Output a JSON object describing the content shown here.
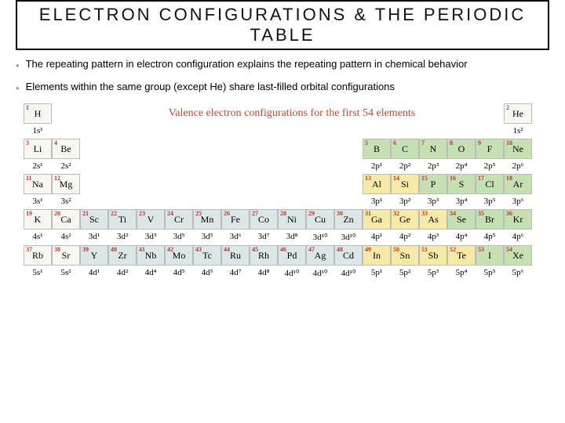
{
  "title": "ELECTRON CONFIGURATIONS & THE PERIODIC TABLE",
  "bullets": [
    "The repeating pattern in electron configuration explains the repeating pattern in chemical behavior",
    "Elements within the same group (except He) share last-filled orbital configurations"
  ],
  "caption": "Valence electron configurations for the first 54 elements",
  "colors": {
    "caption": "#b84c2e",
    "atomic_number": "#b33"
  },
  "rows": [
    {
      "items": [
        {
          "n": "1",
          "sym": "H",
          "cls": "plain"
        },
        null,
        null,
        null,
        null,
        null,
        null,
        null,
        null,
        null,
        null,
        null,
        null,
        null,
        null,
        null,
        null,
        {
          "n": "2",
          "sym": "He",
          "cls": "plain"
        }
      ],
      "conf": [
        "1s¹",
        "",
        "",
        "",
        "",
        "",
        "",
        "",
        "",
        "",
        "",
        "",
        "",
        "",
        "",
        "",
        "",
        "1s²"
      ]
    },
    {
      "items": [
        {
          "n": "3",
          "sym": "Li",
          "cls": "plain"
        },
        {
          "n": "4",
          "sym": "Be",
          "cls": "plain"
        },
        null,
        null,
        null,
        null,
        null,
        null,
        null,
        null,
        null,
        null,
        {
          "n": "5",
          "sym": "B",
          "cls": "gr"
        },
        {
          "n": "6",
          "sym": "C",
          "cls": "gr"
        },
        {
          "n": "7",
          "sym": "N",
          "cls": "gr"
        },
        {
          "n": "8",
          "sym": "O",
          "cls": "gr"
        },
        {
          "n": "9",
          "sym": "F",
          "cls": "gr"
        },
        {
          "n": "10",
          "sym": "Ne",
          "cls": "gr"
        }
      ],
      "conf": [
        "2s¹",
        "2s²",
        "",
        "",
        "",
        "",
        "",
        "",
        "",
        "",
        "",
        "",
        "2p¹",
        "2p²",
        "2p³",
        "2p⁴",
        "2p⁵",
        "2p⁶"
      ]
    },
    {
      "items": [
        {
          "n": "11",
          "sym": "Na",
          "cls": "plain"
        },
        {
          "n": "12",
          "sym": "Mg",
          "cls": "plain"
        },
        null,
        null,
        null,
        null,
        null,
        null,
        null,
        null,
        null,
        null,
        {
          "n": "13",
          "sym": "Al",
          "cls": "yl"
        },
        {
          "n": "14",
          "sym": "Si",
          "cls": "yl"
        },
        {
          "n": "15",
          "sym": "P",
          "cls": "gr"
        },
        {
          "n": "16",
          "sym": "S",
          "cls": "gr"
        },
        {
          "n": "17",
          "sym": "Cl",
          "cls": "gr"
        },
        {
          "n": "18",
          "sym": "Ar",
          "cls": "gr"
        }
      ],
      "conf": [
        "3s¹",
        "3s²",
        "",
        "",
        "",
        "",
        "",
        "",
        "",
        "",
        "",
        "",
        "3p¹",
        "3p²",
        "3p³",
        "3p⁴",
        "3p⁵",
        "3p⁶"
      ]
    },
    {
      "items": [
        {
          "n": "19",
          "sym": "K",
          "cls": "plain"
        },
        {
          "n": "20",
          "sym": "Ca",
          "cls": "plain"
        },
        {
          "n": "21",
          "sym": "Sc",
          "cls": "db"
        },
        {
          "n": "22",
          "sym": "Ti",
          "cls": "db"
        },
        {
          "n": "23",
          "sym": "V",
          "cls": "db"
        },
        {
          "n": "24",
          "sym": "Cr",
          "cls": "db"
        },
        {
          "n": "25",
          "sym": "Mn",
          "cls": "db"
        },
        {
          "n": "26",
          "sym": "Fe",
          "cls": "db"
        },
        {
          "n": "27",
          "sym": "Co",
          "cls": "db"
        },
        {
          "n": "28",
          "sym": "Ni",
          "cls": "db"
        },
        {
          "n": "29",
          "sym": "Cu",
          "cls": "db"
        },
        {
          "n": "30",
          "sym": "Zn",
          "cls": "db"
        },
        {
          "n": "31",
          "sym": "Ga",
          "cls": "yl"
        },
        {
          "n": "32",
          "sym": "Ge",
          "cls": "yl"
        },
        {
          "n": "33",
          "sym": "As",
          "cls": "yl"
        },
        {
          "n": "34",
          "sym": "Se",
          "cls": "gr"
        },
        {
          "n": "35",
          "sym": "Br",
          "cls": "gr"
        },
        {
          "n": "36",
          "sym": "Kr",
          "cls": "gr"
        }
      ],
      "conf": [
        "4s¹",
        "4s²",
        "3d¹",
        "3d²",
        "3d³",
        "3d⁵",
        "3d⁵",
        "3d⁶",
        "3d⁷",
        "3d⁸",
        "3d¹⁰",
        "3d¹⁰",
        "4p¹",
        "4p²",
        "4p³",
        "4p⁴",
        "4p⁵",
        "4p⁶"
      ]
    },
    {
      "items": [
        {
          "n": "37",
          "sym": "Rb",
          "cls": "plain"
        },
        {
          "n": "38",
          "sym": "Sr",
          "cls": "plain"
        },
        {
          "n": "39",
          "sym": "Y",
          "cls": "db"
        },
        {
          "n": "40",
          "sym": "Zr",
          "cls": "db"
        },
        {
          "n": "41",
          "sym": "Nb",
          "cls": "db"
        },
        {
          "n": "42",
          "sym": "Mo",
          "cls": "db"
        },
        {
          "n": "43",
          "sym": "Tc",
          "cls": "db"
        },
        {
          "n": "44",
          "sym": "Ru",
          "cls": "db"
        },
        {
          "n": "45",
          "sym": "Rh",
          "cls": "db"
        },
        {
          "n": "46",
          "sym": "Pd",
          "cls": "db"
        },
        {
          "n": "47",
          "sym": "Ag",
          "cls": "db"
        },
        {
          "n": "48",
          "sym": "Cd",
          "cls": "db"
        },
        {
          "n": "49",
          "sym": "In",
          "cls": "yl"
        },
        {
          "n": "50",
          "sym": "Sn",
          "cls": "yl"
        },
        {
          "n": "51",
          "sym": "Sb",
          "cls": "yl"
        },
        {
          "n": "52",
          "sym": "Te",
          "cls": "yl"
        },
        {
          "n": "53",
          "sym": "I",
          "cls": "gr"
        },
        {
          "n": "54",
          "sym": "Xe",
          "cls": "gr"
        }
      ],
      "conf": [
        "5s¹",
        "5s²",
        "4d¹",
        "4d²",
        "4d⁴",
        "4d⁵",
        "4d⁵",
        "4d⁷",
        "4d⁸",
        "4d¹⁰",
        "4d¹⁰",
        "4d¹⁰",
        "5p¹",
        "5p²",
        "5p³",
        "5p⁴",
        "5p⁵",
        "5p⁶"
      ]
    }
  ]
}
